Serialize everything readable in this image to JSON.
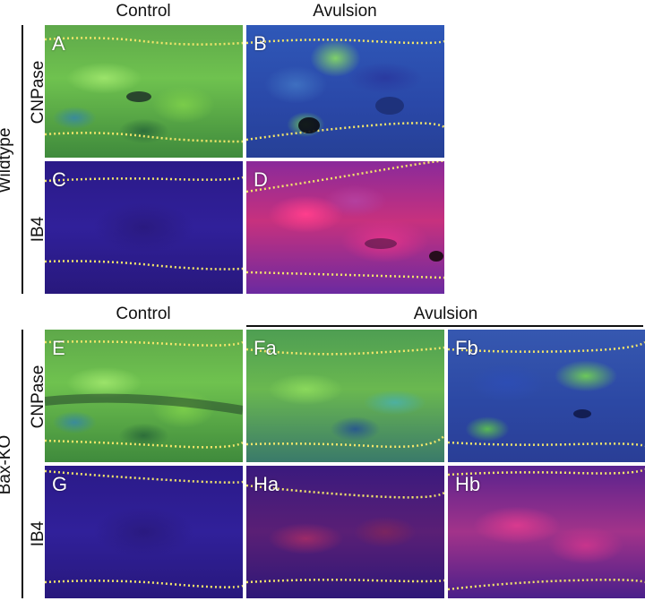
{
  "top": {
    "col_headers": [
      "Control",
      "Avulsion"
    ],
    "row_group_label": "Wildtype",
    "row_labels": [
      "CNPase",
      "IB4"
    ],
    "panels": [
      "A",
      "B",
      "C",
      "D"
    ]
  },
  "bottom": {
    "col_headers": [
      "Control",
      "Avulsion"
    ],
    "row_group_label": "Bax-KO",
    "row_labels": [
      "CNPase",
      "IB4"
    ],
    "panels": [
      "E",
      "Fa",
      "Fb",
      "G",
      "Ha",
      "Hb"
    ]
  },
  "colors": {
    "cnpase_green": "#6fc24f",
    "dapi_blue": "#2f58b8",
    "ib4_magenta": "#e0338a",
    "dotted_outline": "#f2e56a"
  }
}
